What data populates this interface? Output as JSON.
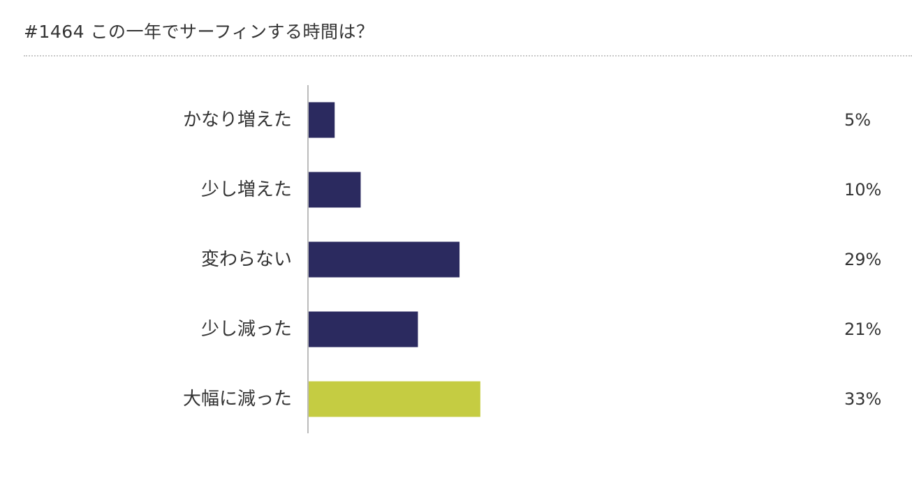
{
  "title": "#1464  この一年でサーフィンする時間は？",
  "colors": {
    "bar": "#2b2a5f",
    "highlight": "#c5cc42",
    "axis": "#bbbbbb",
    "text": "#333333"
  },
  "chart_data": {
    "type": "bar",
    "orientation": "horizontal",
    "categories": [
      "かなり増えた",
      "少し増えた",
      "変わらない",
      "少し減った",
      "大幅に減った"
    ],
    "values": [
      5,
      10,
      29,
      21,
      33
    ],
    "value_labels": [
      "5%",
      "10%",
      "29%",
      "21%",
      "33%"
    ],
    "highlight_index": 4,
    "xlim": [
      0,
      100
    ],
    "grid": false,
    "legend": "none"
  }
}
